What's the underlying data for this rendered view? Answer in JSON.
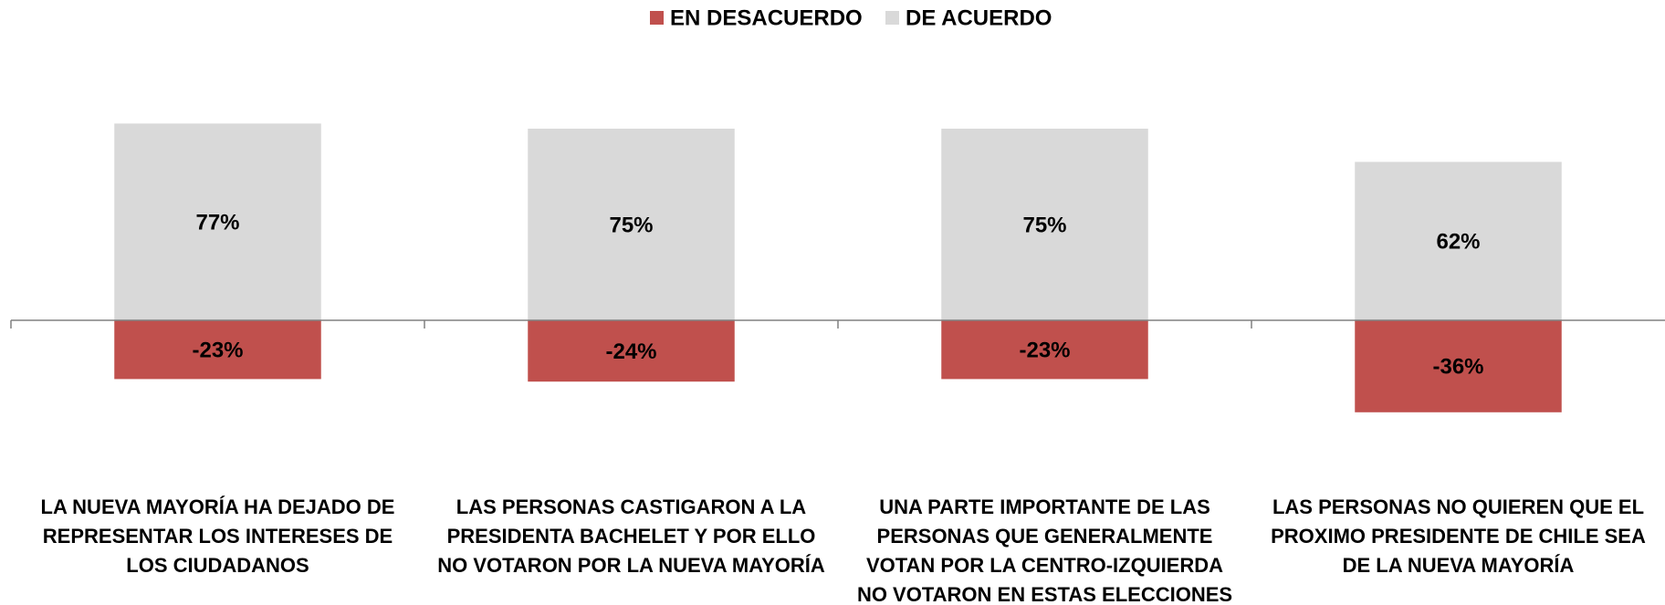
{
  "chart_data": {
    "type": "bar",
    "stacked": true,
    "categories": [
      "LA NUEVA MAYORÍA HA DEJADO DE REPRESENTAR LOS INTERESES DE LOS CIUDADANOS",
      "LAS PERSONAS CASTIGARON A LA PRESIDENTA BACHELET Y POR ELLO NO VOTARON POR LA NUEVA MAYORÍA",
      "UNA PARTE IMPORTANTE DE LAS PERSONAS QUE GENERALMENTE VOTAN POR LA CENTRO-IZQUIERDA NO VOTARON EN ESTAS ELECCIONES",
      "LAS PERSONAS NO QUIEREN QUE EL PROXIMO PRESIDENTE DE CHILE SEA DE LA NUEVA MAYORÍA"
    ],
    "series": [
      {
        "name": "EN DESACUERDO",
        "color": "#c0504d",
        "values": [
          -23,
          -24,
          -23,
          -36
        ],
        "value_labels": [
          "-23%",
          "-24%",
          "-23%",
          "-36%"
        ]
      },
      {
        "name": "DE ACUERDO",
        "color": "#d9d9d9",
        "values": [
          77,
          75,
          75,
          62
        ],
        "value_labels": [
          "77%",
          "75%",
          "75%",
          "62%"
        ]
      }
    ],
    "legend": "top"
  }
}
